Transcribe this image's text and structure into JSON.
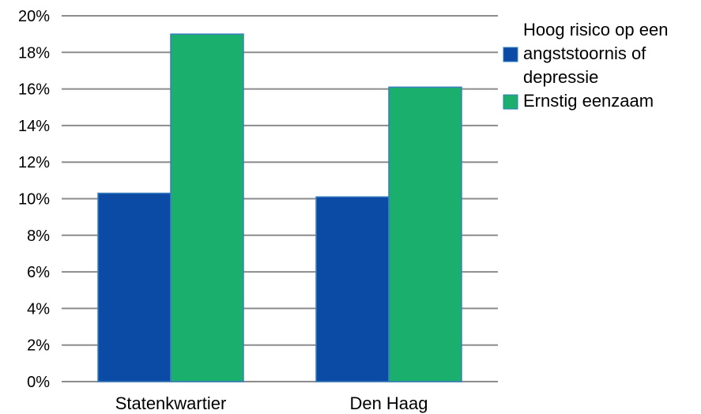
{
  "chart_data": {
    "type": "bar",
    "categories": [
      "Statenkwartier",
      "Den Haag"
    ],
    "series": [
      {
        "name": "Hoog risico op een angststoornis of depressie",
        "legend_lines": [
          "Hoog risico op een",
          "angststoornis of",
          "depressie"
        ],
        "color": "#0b4ba5",
        "values": [
          10.3,
          10.1
        ]
      },
      {
        "name": "Ernstig eenzaam",
        "legend_lines": [
          "Ernstig eenzaam"
        ],
        "color": "#1aaf6c",
        "values": [
          19.0,
          16.1
        ]
      }
    ],
    "y_ticks": [
      "0%",
      "2%",
      "4%",
      "6%",
      "8%",
      "10%",
      "12%",
      "14%",
      "16%",
      "18%",
      "20%"
    ],
    "ylim": [
      0,
      20
    ],
    "y_unit": "%",
    "grid": true,
    "legend_position": "right",
    "title": "",
    "xlabel": "",
    "ylabel": ""
  }
}
